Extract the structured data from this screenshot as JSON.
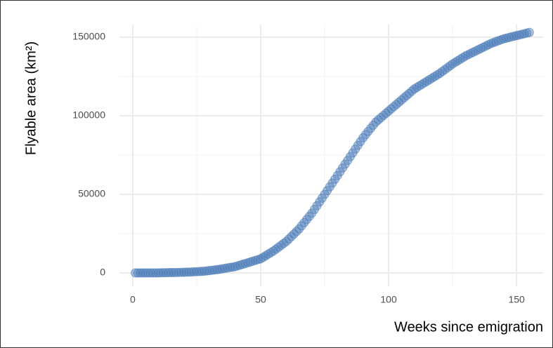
{
  "chart_data": {
    "type": "scatter",
    "xlabel": "Weeks since emigration",
    "ylabel": "Flyable area (km²)",
    "color": "#4a7ab8",
    "grid": true,
    "xlim": [
      -5.2,
      160.4
    ],
    "ylim": [
      -8480,
      158036
    ],
    "xticks": [
      0,
      50,
      100,
      150
    ],
    "yticks": [
      0,
      50000,
      100000,
      150000
    ],
    "xminor": [
      25,
      75,
      125
    ],
    "yminor": [
      25000,
      75000,
      125000
    ],
    "x": [
      1,
      2,
      3,
      4,
      5,
      6,
      7,
      8,
      9,
      10,
      11,
      12,
      13,
      14,
      15,
      16,
      17,
      18,
      19,
      20,
      21,
      22,
      23,
      24,
      25,
      26,
      27,
      28,
      29,
      30,
      31,
      32,
      33,
      34,
      35,
      36,
      37,
      38,
      39,
      40,
      41,
      42,
      43,
      44,
      45,
      46,
      47,
      48,
      49,
      50,
      51,
      52,
      53,
      54,
      55,
      56,
      57,
      58,
      59,
      60,
      61,
      62,
      63,
      64,
      65,
      66,
      67,
      68,
      69,
      70,
      71,
      72,
      73,
      74,
      75,
      76,
      77,
      78,
      79,
      80,
      81,
      82,
      83,
      84,
      85,
      86,
      87,
      88,
      89,
      90,
      91,
      92,
      93,
      94,
      95,
      96,
      97,
      98,
      99,
      100,
      101,
      102,
      103,
      104,
      105,
      106,
      107,
      108,
      109,
      110,
      111,
      112,
      113,
      114,
      115,
      116,
      117,
      118,
      119,
      120,
      121,
      122,
      123,
      124,
      125,
      126,
      127,
      128,
      129,
      130,
      131,
      132,
      133,
      134,
      135,
      136,
      137,
      138,
      139,
      140,
      141,
      142,
      143,
      144,
      145,
      146,
      147,
      148,
      149,
      150,
      151,
      152,
      153,
      154,
      155
    ],
    "values": [
      0,
      0,
      0,
      0,
      0,
      0,
      0,
      0,
      0,
      0,
      100,
      100,
      100,
      200,
      200,
      200,
      300,
      300,
      400,
      400,
      500,
      500,
      600,
      700,
      800,
      900,
      1000,
      1100,
      1300,
      1500,
      1700,
      1900,
      2100,
      2300,
      2600,
      2900,
      3200,
      3500,
      3700,
      4000,
      4500,
      5000,
      5500,
      6000,
      6500,
      7000,
      7500,
      8000,
      8500,
      9000,
      10000,
      11000,
      12000,
      13000,
      14000,
      15200,
      16400,
      17600,
      18800,
      20000,
      21600,
      23200,
      24800,
      26400,
      28000,
      30000,
      32000,
      34000,
      36000,
      38000,
      40400,
      42800,
      45200,
      47600,
      50000,
      52400,
      54800,
      57200,
      59600,
      62000,
      64400,
      66800,
      69200,
      71600,
      74000,
      76400,
      78800,
      81200,
      83600,
      86000,
      88000,
      90000,
      92000,
      94000,
      96000,
      97400,
      98800,
      100200,
      101600,
      103000,
      104400,
      105800,
      107200,
      108600,
      110000,
      111400,
      112800,
      114200,
      115600,
      117000,
      118000,
      119000,
      120000,
      121000,
      122000,
      123000,
      124000,
      125000,
      126000,
      127000,
      128200,
      129400,
      130600,
      131800,
      133000,
      134000,
      135000,
      136000,
      137000,
      138000,
      138800,
      139600,
      140400,
      141200,
      142000,
      142800,
      143600,
      144400,
      145200,
      146000,
      146600,
      147200,
      147800,
      148400,
      149000,
      149400,
      149800,
      150200,
      150600,
      151000,
      151400,
      151800,
      152200,
      152600,
      153000
    ]
  }
}
